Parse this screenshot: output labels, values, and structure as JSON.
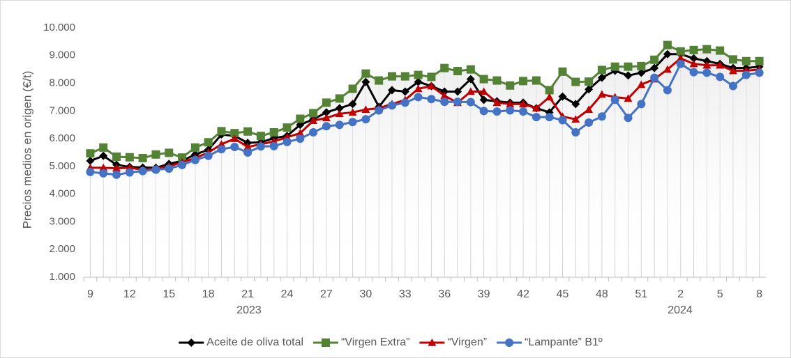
{
  "chart_data": {
    "type": "line",
    "y_label": "Precios medios  en origen (€/t)",
    "categories": [
      "9",
      null,
      null,
      "12",
      null,
      null,
      "15",
      null,
      null,
      "18",
      null,
      null,
      "21",
      null,
      null,
      "24",
      null,
      null,
      "27",
      null,
      null,
      "30",
      null,
      null,
      "33",
      null,
      null,
      "36",
      null,
      null,
      "39",
      null,
      null,
      "42",
      null,
      null,
      "45",
      null,
      null,
      "48",
      null,
      null,
      "51",
      null,
      null,
      "2",
      null,
      null,
      "5",
      null,
      null,
      "8"
    ],
    "year_labels": [
      "2023",
      "2024"
    ],
    "ylim": [
      1000,
      10000
    ],
    "yticks": [
      {
        "value": 1000,
        "label": "1.000"
      },
      {
        "value": 2000,
        "label": "2.000"
      },
      {
        "value": 3000,
        "label": "3.000"
      },
      {
        "value": 4000,
        "label": "4.000"
      },
      {
        "value": 5000,
        "label": "5.000"
      },
      {
        "value": 6000,
        "label": "6.000"
      },
      {
        "value": 7000,
        "label": "7.000"
      },
      {
        "value": 8000,
        "label": "8.000"
      },
      {
        "value": 9000,
        "label": "9.000"
      },
      {
        "value": 10000,
        "label": "10.000"
      }
    ],
    "drop_lines": true,
    "legend": "bottom",
    "series": [
      {
        "name": "Aceite de oliva total",
        "color": "#000000",
        "marker": "diamond",
        "values": [
          5200,
          5380,
          5060,
          4980,
          4960,
          4950,
          5090,
          5200,
          5430,
          5600,
          6150,
          6100,
          5850,
          5870,
          6020,
          6100,
          6500,
          6700,
          6950,
          7100,
          7250,
          8050,
          7150,
          7750,
          7700,
          8050,
          7900,
          7700,
          7700,
          8150,
          7400,
          7350,
          7300,
          7300,
          7100,
          6950,
          7520,
          7250,
          7780,
          8200,
          8450,
          8280,
          8380,
          8550,
          9050,
          9050,
          8900,
          8800,
          8700,
          8550,
          8550,
          8600
        ]
      },
      {
        "name": "“Virgen Extra”",
        "color": "#548235",
        "marker": "square",
        "values": [
          5470,
          5680,
          5350,
          5330,
          5300,
          5430,
          5490,
          5320,
          5680,
          5870,
          6270,
          6200,
          6260,
          6100,
          6230,
          6400,
          6720,
          6920,
          7300,
          7450,
          7800,
          8350,
          8100,
          8250,
          8250,
          8300,
          8230,
          8550,
          8440,
          8500,
          8150,
          8100,
          7920,
          8080,
          8100,
          7750,
          8420,
          8050,
          8060,
          8480,
          8600,
          8600,
          8620,
          8850,
          9380,
          9150,
          9200,
          9230,
          9180,
          8860,
          8800,
          8800
        ]
      },
      {
        "name": "“Virgen”",
        "color": "#c00000",
        "marker": "triangle",
        "values": [
          4950,
          4950,
          4930,
          4950,
          4880,
          4920,
          5000,
          5150,
          5300,
          5500,
          5800,
          6000,
          5700,
          5800,
          5900,
          6050,
          6200,
          6650,
          6750,
          6900,
          6950,
          7050,
          7100,
          7250,
          7400,
          7800,
          7900,
          7550,
          7300,
          7700,
          7700,
          7300,
          7250,
          7250,
          7100,
          7500,
          6800,
          6700,
          7050,
          7600,
          7500,
          7450,
          7950,
          8150,
          8500,
          8900,
          8700,
          8650,
          8650,
          8450,
          8450,
          8500
        ]
      },
      {
        "name": "“Lampante” B1º",
        "color": "#4472c4",
        "marker": "circle",
        "values": [
          4800,
          4750,
          4700,
          4780,
          4830,
          4880,
          4920,
          5050,
          5230,
          5380,
          5620,
          5700,
          5500,
          5720,
          5730,
          5880,
          6000,
          6230,
          6450,
          6500,
          6600,
          6700,
          7020,
          7200,
          7300,
          7500,
          7430,
          7330,
          7330,
          7320,
          7000,
          6980,
          7020,
          6980,
          6780,
          6780,
          6670,
          6230,
          6580,
          6800,
          7400,
          6750,
          7250,
          8200,
          7750,
          8700,
          8400,
          8380,
          8230,
          7900,
          8300,
          8380
        ]
      }
    ]
  }
}
